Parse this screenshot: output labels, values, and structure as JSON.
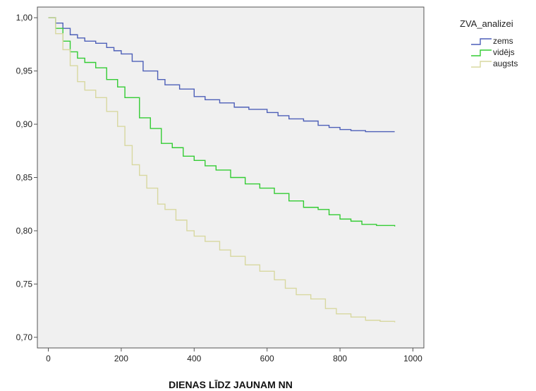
{
  "chart_data": {
    "type": "line",
    "step": true,
    "xlabel": "DIENAS LĪDZ JAUNAM NN",
    "ylabel": "",
    "xlim": [
      -30,
      1030
    ],
    "ylim": [
      0.69,
      1.01
    ],
    "xticks": [
      0,
      200,
      400,
      600,
      800,
      1000
    ],
    "xtick_labels": [
      "0",
      "200",
      "400",
      "600",
      "800",
      "1000"
    ],
    "yticks": [
      0.7,
      0.75,
      0.8,
      0.85,
      0.9,
      0.95,
      1.0
    ],
    "ytick_labels": [
      "0,70",
      "0,75",
      "0,80",
      "0,85",
      "0,90",
      "0,95",
      "1,00"
    ],
    "grid": false,
    "plot_background": "#f0f0f0",
    "legend": {
      "title": "ZVA_analizei",
      "position": "right-top"
    },
    "series": [
      {
        "name": "zems",
        "color": "#4d5fb8",
        "points": [
          [
            0,
            1.0
          ],
          [
            20,
            0.995
          ],
          [
            40,
            0.99
          ],
          [
            60,
            0.984
          ],
          [
            80,
            0.981
          ],
          [
            100,
            0.978
          ],
          [
            130,
            0.976
          ],
          [
            160,
            0.972
          ],
          [
            180,
            0.969
          ],
          [
            200,
            0.966
          ],
          [
            230,
            0.959
          ],
          [
            260,
            0.95
          ],
          [
            300,
            0.942
          ],
          [
            320,
            0.937
          ],
          [
            360,
            0.933
          ],
          [
            400,
            0.926
          ],
          [
            430,
            0.923
          ],
          [
            470,
            0.92
          ],
          [
            510,
            0.916
          ],
          [
            550,
            0.914
          ],
          [
            600,
            0.911
          ],
          [
            630,
            0.908
          ],
          [
            660,
            0.905
          ],
          [
            700,
            0.903
          ],
          [
            740,
            0.899
          ],
          [
            770,
            0.897
          ],
          [
            800,
            0.895
          ],
          [
            830,
            0.894
          ],
          [
            870,
            0.893
          ],
          [
            950,
            0.893
          ]
        ]
      },
      {
        "name": "vidējs",
        "color": "#33cc33",
        "points": [
          [
            0,
            1.0
          ],
          [
            20,
            0.99
          ],
          [
            40,
            0.978
          ],
          [
            60,
            0.968
          ],
          [
            80,
            0.962
          ],
          [
            100,
            0.958
          ],
          [
            130,
            0.953
          ],
          [
            160,
            0.942
          ],
          [
            190,
            0.935
          ],
          [
            210,
            0.925
          ],
          [
            250,
            0.906
          ],
          [
            280,
            0.896
          ],
          [
            310,
            0.882
          ],
          [
            340,
            0.878
          ],
          [
            370,
            0.87
          ],
          [
            400,
            0.866
          ],
          [
            430,
            0.861
          ],
          [
            460,
            0.857
          ],
          [
            500,
            0.85
          ],
          [
            540,
            0.844
          ],
          [
            580,
            0.84
          ],
          [
            620,
            0.835
          ],
          [
            660,
            0.828
          ],
          [
            700,
            0.822
          ],
          [
            740,
            0.82
          ],
          [
            770,
            0.815
          ],
          [
            800,
            0.811
          ],
          [
            830,
            0.809
          ],
          [
            860,
            0.806
          ],
          [
            900,
            0.805
          ],
          [
            950,
            0.804
          ]
        ]
      },
      {
        "name": "augsts",
        "color": "#d8d8a0",
        "points": [
          [
            0,
            1.0
          ],
          [
            20,
            0.985
          ],
          [
            40,
            0.97
          ],
          [
            60,
            0.955
          ],
          [
            80,
            0.94
          ],
          [
            100,
            0.932
          ],
          [
            130,
            0.925
          ],
          [
            160,
            0.912
          ],
          [
            190,
            0.898
          ],
          [
            210,
            0.88
          ],
          [
            230,
            0.862
          ],
          [
            250,
            0.852
          ],
          [
            270,
            0.84
          ],
          [
            300,
            0.825
          ],
          [
            320,
            0.82
          ],
          [
            350,
            0.81
          ],
          [
            380,
            0.8
          ],
          [
            400,
            0.795
          ],
          [
            430,
            0.79
          ],
          [
            470,
            0.782
          ],
          [
            500,
            0.776
          ],
          [
            540,
            0.768
          ],
          [
            580,
            0.762
          ],
          [
            620,
            0.754
          ],
          [
            650,
            0.746
          ],
          [
            680,
            0.74
          ],
          [
            720,
            0.736
          ],
          [
            760,
            0.727
          ],
          [
            790,
            0.722
          ],
          [
            830,
            0.719
          ],
          [
            870,
            0.716
          ],
          [
            910,
            0.715
          ],
          [
            950,
            0.714
          ]
        ]
      }
    ]
  }
}
